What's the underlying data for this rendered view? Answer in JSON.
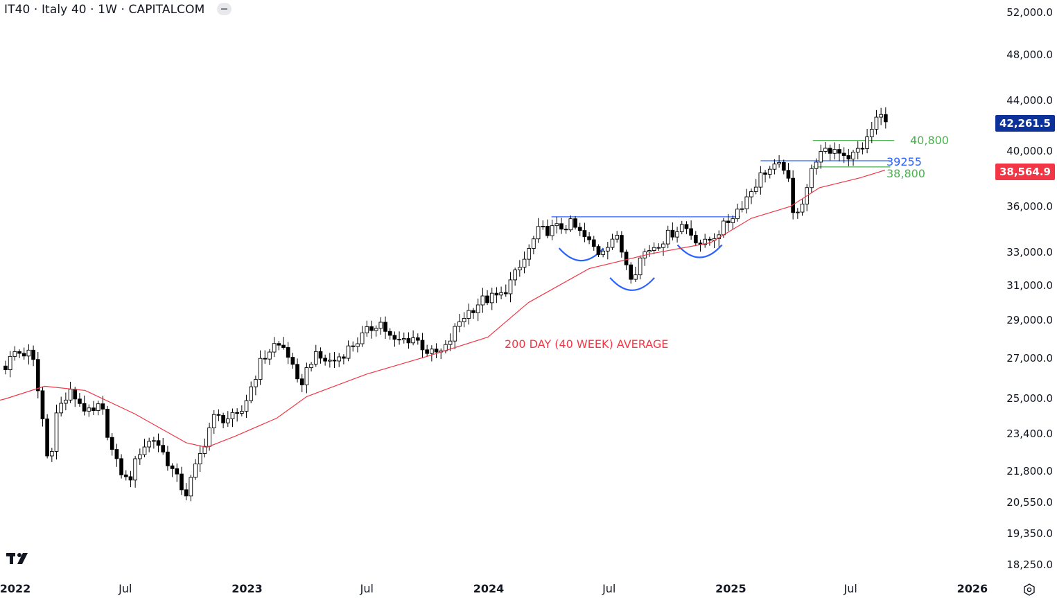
{
  "header": {
    "title": "IT40 · Italy 40 · 1W · CAPITALCOM"
  },
  "colors": {
    "up_candle_fill": "#ffffff",
    "candle_border": "#000000",
    "down_candle_fill": "#000000",
    "moving_average": "#f23645",
    "resistance_line": "#2962ff",
    "range_line": "#4caf50",
    "last_price_badge": "#0c3299",
    "ma_badge": "#f23645"
  },
  "chart_data": {
    "type": "candlestick",
    "timeframe": "1W",
    "y_axis": {
      "scale": "log",
      "ylim": [
        17800,
        54000
      ],
      "ticks": [
        "52,000.0",
        "48,000.0",
        "44,000.0",
        "40,000.0",
        "36,000.0",
        "33,000.0",
        "31,000.0",
        "29,000.0",
        "27,000.0",
        "25,000.0",
        "23,400.0",
        "21,800.0",
        "20,550.0",
        "19,350.0",
        "18,250.0"
      ]
    },
    "x_axis": {
      "ticks": [
        "2022",
        "Jul",
        "2023",
        "Jul",
        "2024",
        "Jul",
        "2025",
        "Jul",
        "2026"
      ]
    },
    "price_path": [
      [
        "2022-01-01",
        26600
      ],
      [
        "2022-01-15",
        27300
      ],
      [
        "2022-02-10",
        27200
      ],
      [
        "2022-03-01",
        23500
      ],
      [
        "2022-03-07",
        21900
      ],
      [
        "2022-03-20",
        24500
      ],
      [
        "2022-04-10",
        25300
      ],
      [
        "2022-05-10",
        24200
      ],
      [
        "2022-05-25",
        24700
      ],
      [
        "2022-06-14",
        22300
      ],
      [
        "2022-07-05",
        21300
      ],
      [
        "2022-07-25",
        22800
      ],
      [
        "2022-08-15",
        23200
      ],
      [
        "2022-09-05",
        22100
      ],
      [
        "2022-09-20",
        21300
      ],
      [
        "2022-10-01",
        20900
      ],
      [
        "2022-10-20",
        22300
      ],
      [
        "2022-11-10",
        24100
      ],
      [
        "2022-12-20",
        24100
      ],
      [
        "2023-01-20",
        26700
      ],
      [
        "2023-02-10",
        27700
      ],
      [
        "2023-03-01",
        27500
      ],
      [
        "2023-03-20",
        25500
      ],
      [
        "2023-04-10",
        27100
      ],
      [
        "2023-05-10",
        26800
      ],
      [
        "2023-06-20",
        28000
      ],
      [
        "2023-07-20",
        29000
      ],
      [
        "2023-08-10",
        27800
      ],
      [
        "2023-09-10",
        28100
      ],
      [
        "2023-10-05",
        27200
      ],
      [
        "2023-10-25",
        27300
      ],
      [
        "2023-11-20",
        29100
      ],
      [
        "2023-12-20",
        30100
      ],
      [
        "2024-01-20",
        30400
      ],
      [
        "2024-02-20",
        32200
      ],
      [
        "2024-03-15",
        34300
      ],
      [
        "2024-04-10",
        34500
      ],
      [
        "2024-05-05",
        34800
      ],
      [
        "2024-06-15",
        33000
      ],
      [
        "2024-07-10",
        34100
      ],
      [
        "2024-08-05",
        31500
      ],
      [
        "2024-08-20",
        32900
      ],
      [
        "2024-09-20",
        33800
      ],
      [
        "2024-10-20",
        34800
      ],
      [
        "2024-11-20",
        33400
      ],
      [
        "2024-12-20",
        34600
      ],
      [
        "2025-01-20",
        36300
      ],
      [
        "2025-02-20",
        38500
      ],
      [
        "2025-03-10",
        38700
      ],
      [
        "2025-03-25",
        38900
      ],
      [
        "2025-04-05",
        35400
      ],
      [
        "2025-04-20",
        36500
      ],
      [
        "2025-05-10",
        39500
      ],
      [
        "2025-06-10",
        40200
      ],
      [
        "2025-07-01",
        39500
      ],
      [
        "2025-07-25",
        40700
      ],
      [
        "2025-08-12",
        42900
      ],
      [
        "2025-08-22",
        42261.5
      ]
    ],
    "moving_average": {
      "label": "200 DAY (40 WEEK) AVERAGE",
      "value": "38,564.9",
      "path": [
        [
          "2022-01-01",
          25000
        ],
        [
          "2022-03-01",
          25600
        ],
        [
          "2022-05-01",
          25400
        ],
        [
          "2022-07-15",
          24300
        ],
        [
          "2022-10-01",
          23000
        ],
        [
          "2022-11-01",
          22800
        ],
        [
          "2022-12-15",
          23300
        ],
        [
          "2023-02-15",
          24100
        ],
        [
          "2023-04-01",
          25100
        ],
        [
          "2023-07-01",
          26200
        ],
        [
          "2023-10-01",
          27100
        ],
        [
          "2023-12-31",
          28100
        ],
        [
          "2024-03-01",
          30000
        ],
        [
          "2024-06-01",
          32000
        ],
        [
          "2024-09-01",
          32900
        ],
        [
          "2024-12-01",
          33600
        ],
        [
          "2025-02-01",
          35200
        ],
        [
          "2025-04-01",
          36000
        ],
        [
          "2025-05-15",
          37300
        ],
        [
          "2025-07-15",
          38000
        ],
        [
          "2025-08-22",
          38564.9
        ]
      ]
    },
    "last_price": "42,261.5",
    "levels": [
      {
        "label": "40,800",
        "value": 40800,
        "from": "2025-05-05",
        "to": "2025-09-05",
        "color": "#4caf50"
      },
      {
        "label": "39255",
        "value": 39255,
        "from": "2025-02-15",
        "to": "2025-08-30",
        "color": "#2962ff"
      },
      {
        "label": "38,800",
        "value": 38800,
        "from": "2025-05-05",
        "to": "2025-08-30",
        "color": "#4caf50"
      },
      {
        "label": "",
        "value": 35300,
        "from": "2024-04-05",
        "to": "2025-01-15",
        "color": "#2962ff"
      }
    ],
    "pattern_arcs": [
      {
        "center": "2024-05-20",
        "y": 33000
      },
      {
        "center": "2024-08-05",
        "y": 31200
      },
      {
        "center": "2024-11-15",
        "y": 33200
      }
    ]
  }
}
